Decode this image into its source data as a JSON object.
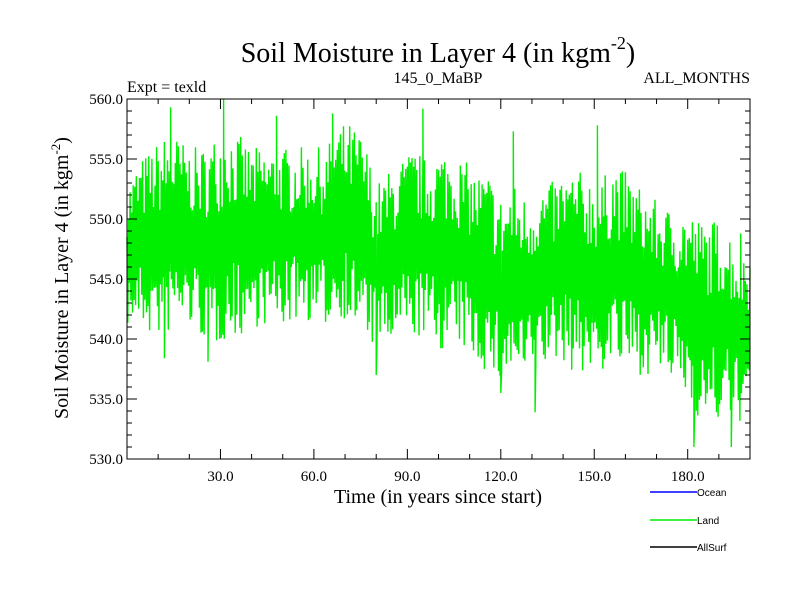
{
  "chart_data": {
    "type": "line",
    "title": "Soil Moisture in Layer 4 (in kgm",
    "title_sup": "-2",
    "title_close": ")",
    "subtitle_left": "Expt = texld",
    "subtitle_center": "145_0_MaBP",
    "subtitle_right": "ALL_MONTHS",
    "xlabel": "Time (in years since start)",
    "ylabel": "Soil Moisture in Layer 4 (in kgm",
    "ylabel_sup": "-2",
    "ylabel_close": ")",
    "xlim": [
      0,
      200
    ],
    "ylim": [
      530,
      560
    ],
    "x_ticks": [
      30,
      60,
      90,
      120,
      150,
      180
    ],
    "x_tick_labels": [
      "30.0",
      "60.0",
      "90.0",
      "120.0",
      "150.0",
      "180.0"
    ],
    "y_ticks": [
      530,
      535,
      540,
      545,
      550,
      555,
      560
    ],
    "y_tick_labels": [
      "530.0",
      "535.0",
      "540.0",
      "545.0",
      "550.0",
      "555.0",
      "560.0"
    ],
    "grid": false,
    "legend_position": "bottom-right",
    "series": [
      {
        "name": "Ocean",
        "color": "#0000ff",
        "x": [],
        "values": []
      },
      {
        "name": "Land",
        "color": "#00ee00",
        "x": [
          0,
          4,
          8,
          12,
          16,
          20,
          24,
          28,
          32,
          36,
          40,
          44,
          48,
          52,
          56,
          60,
          64,
          68,
          72,
          76,
          80,
          84,
          88,
          92,
          96,
          100,
          104,
          108,
          112,
          116,
          120,
          124,
          128,
          132,
          136,
          140,
          144,
          148,
          152,
          156,
          160,
          164,
          168,
          172,
          176,
          180,
          184,
          188,
          192,
          196,
          200
        ],
        "low": [
          541,
          541,
          540,
          540,
          541,
          541,
          540,
          539,
          540,
          540,
          541,
          541,
          541,
          541,
          542,
          541,
          541,
          542,
          541,
          540,
          539,
          539,
          540,
          540,
          540,
          539,
          539,
          539,
          538,
          537,
          536,
          537,
          536,
          537,
          538,
          538,
          537,
          537,
          537,
          538,
          537,
          537,
          537,
          537,
          536,
          535,
          533,
          533,
          533,
          533,
          533
        ],
        "high": [
          553,
          555,
          556,
          557,
          557,
          556,
          556,
          557,
          558,
          557,
          556,
          556,
          556,
          556,
          556,
          556,
          556,
          558,
          558,
          557,
          553,
          554,
          555,
          556,
          555,
          556,
          556,
          555,
          554,
          554,
          552,
          553,
          552,
          553,
          553,
          554,
          554,
          554,
          553,
          555,
          554,
          553,
          552,
          551,
          551,
          551,
          550,
          550,
          550,
          548,
          548
        ],
        "spikes_high": [
          [
            14,
            559.3
          ],
          [
            31,
            560
          ],
          [
            48,
            558.6
          ],
          [
            66,
            558.8
          ],
          [
            95,
            559.2
          ],
          [
            124,
            557.3
          ],
          [
            151,
            557.8
          ],
          [
            197,
            548.8
          ]
        ],
        "spikes_low": [
          [
            12,
            538.4
          ],
          [
            26,
            538.1
          ],
          [
            80,
            537.0
          ],
          [
            120,
            535.5
          ],
          [
            131,
            533.9
          ],
          [
            182,
            531.0
          ],
          [
            194,
            531.0
          ]
        ]
      },
      {
        "name": "AllSurf",
        "color": "#000000",
        "x": [],
        "values": []
      }
    ]
  }
}
